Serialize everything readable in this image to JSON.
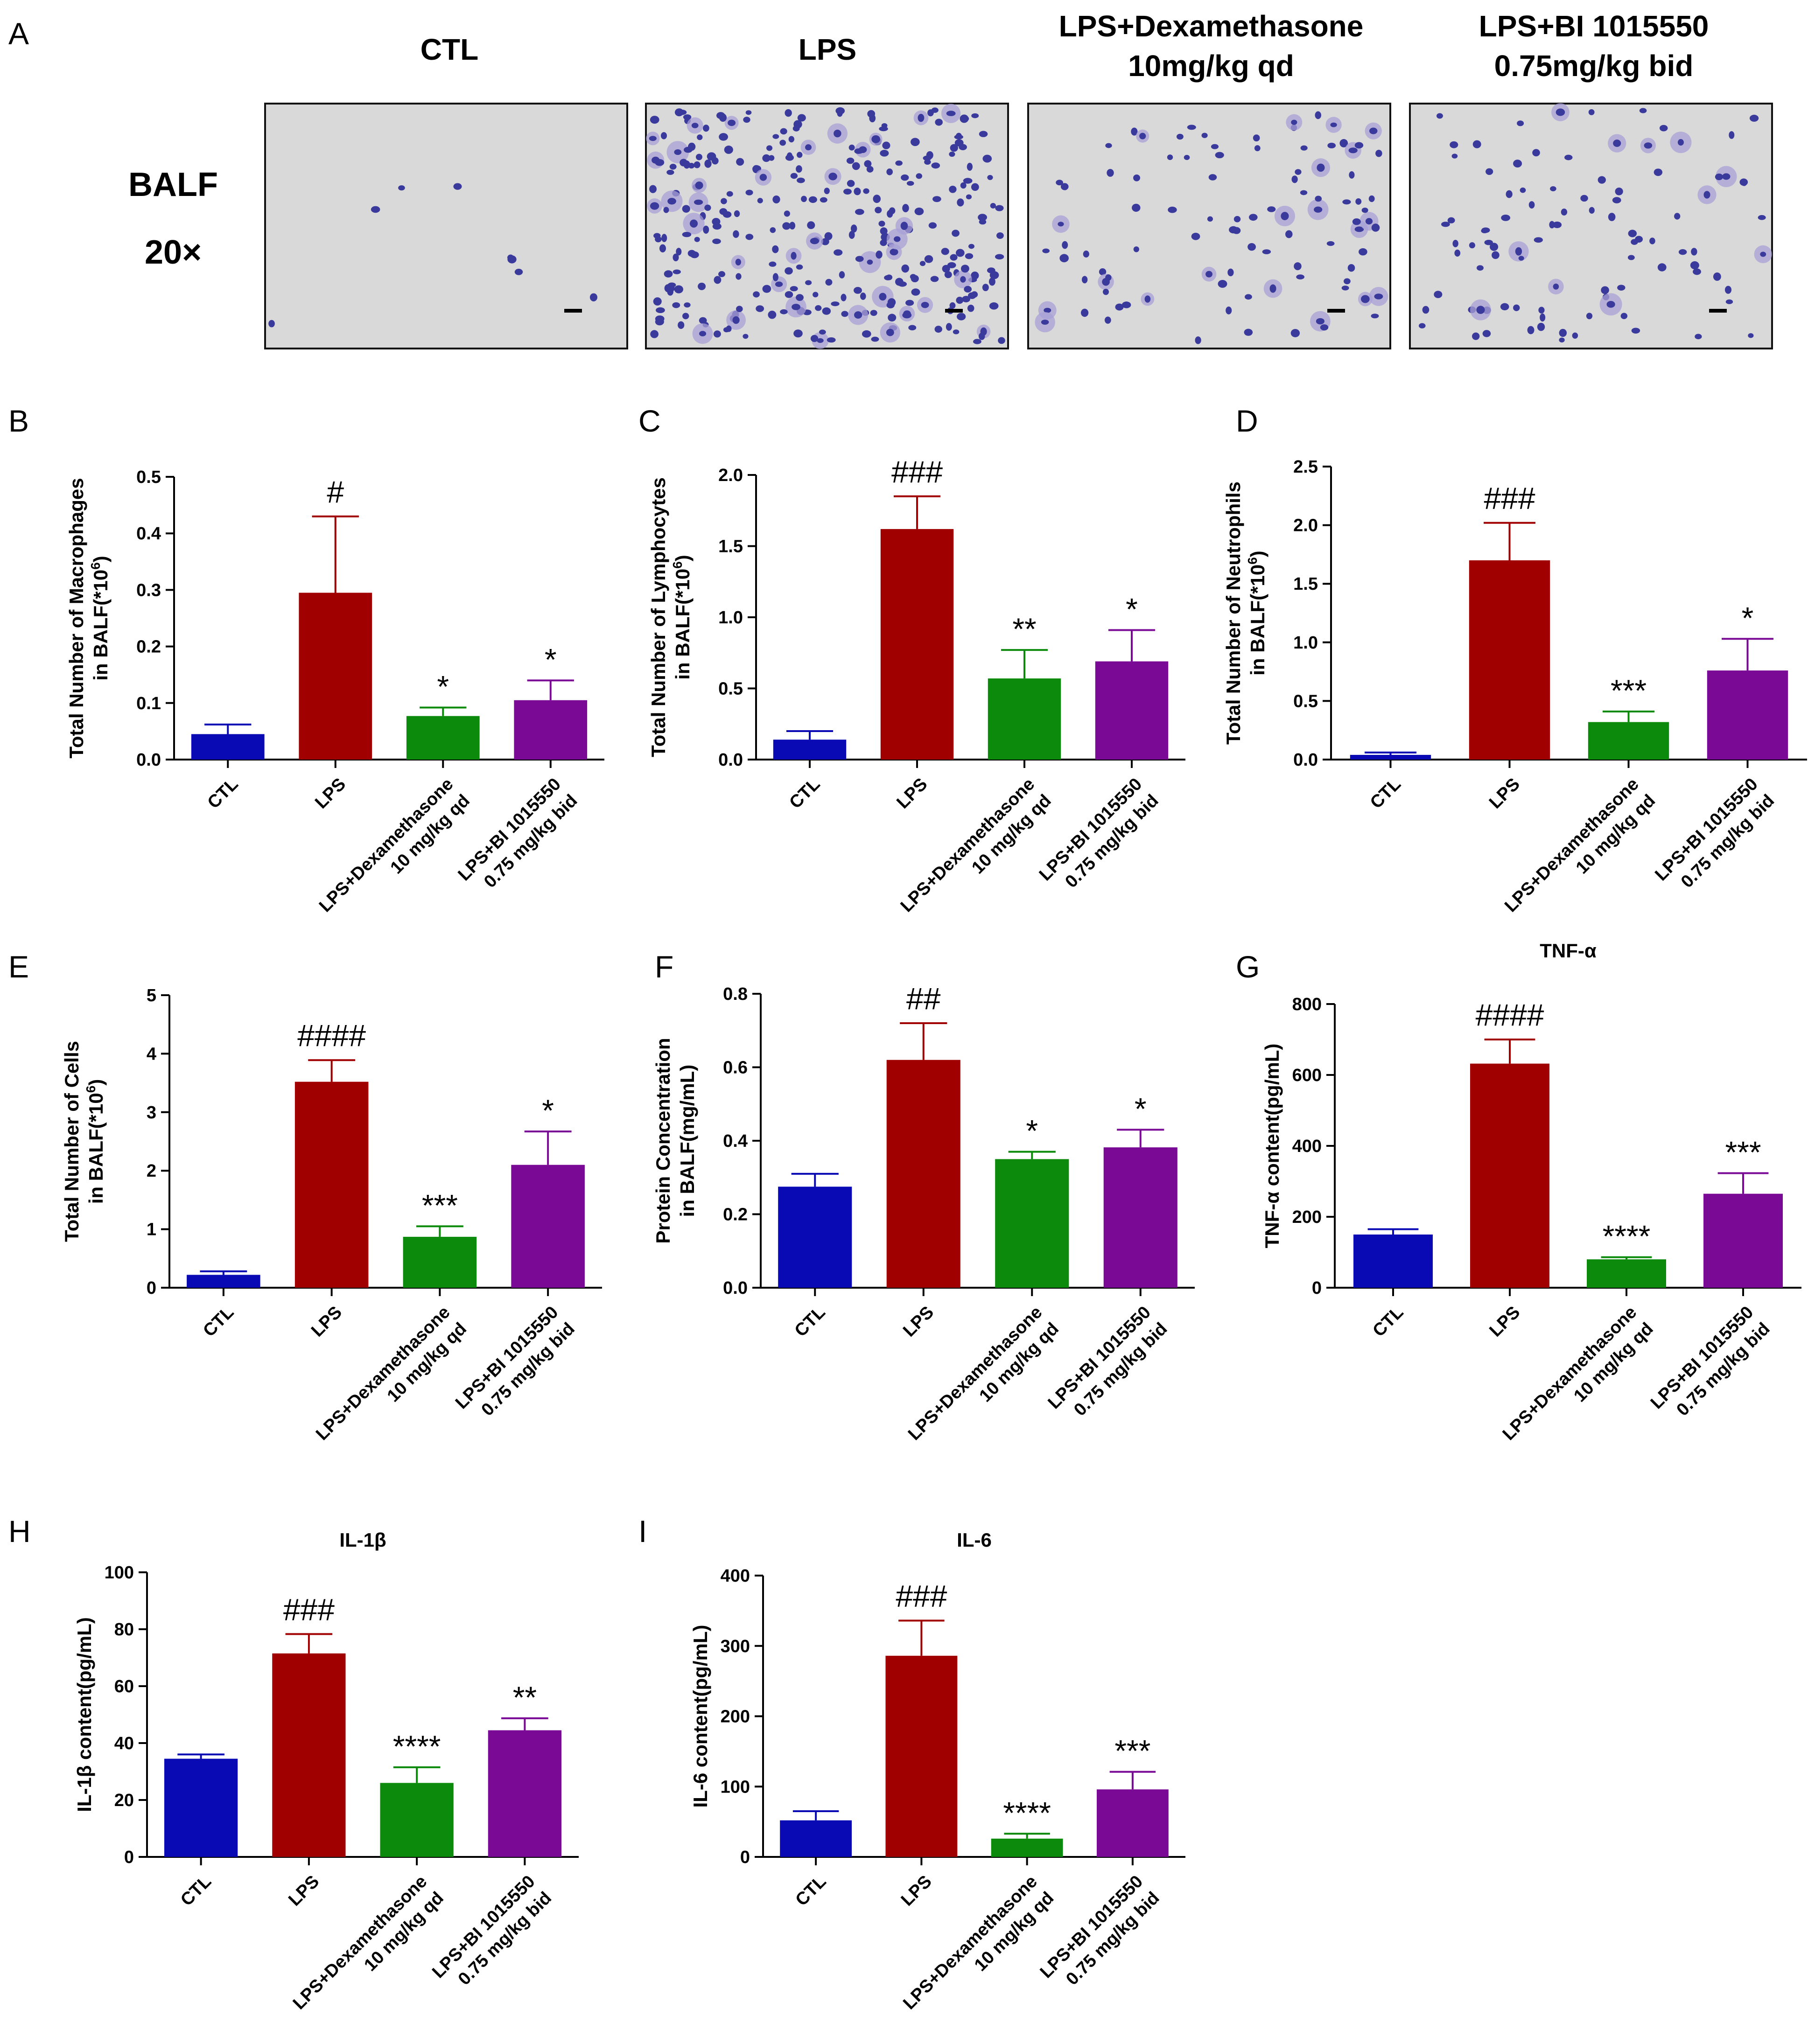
{
  "panel_a": {
    "letter": "A",
    "row_label": [
      "BALF",
      "20×"
    ],
    "columns": [
      {
        "title": [
          "CTL"
        ],
        "density": "sparse"
      },
      {
        "title": [
          "LPS"
        ],
        "density": "dense"
      },
      {
        "title": [
          "LPS+Dexamethasone",
          "10mg/kg qd"
        ],
        "density": "moderate"
      },
      {
        "title": [
          "LPS+BI 1015550",
          "0.75mg/kg bid"
        ],
        "density": "moderate"
      }
    ],
    "stain_colors": {
      "nucleus": "#3a3a9c",
      "cytoplasm": "#a8a0d6",
      "background": "#d9d9d9"
    }
  },
  "colors": {
    "CTL": "#0a0ab4",
    "LPS": "#a00000",
    "Dex": "#0c8a0c",
    "BI": "#7a0a96"
  },
  "category_labels": [
    [
      "CTL"
    ],
    [
      "LPS"
    ],
    [
      "LPS+Dexamethasone",
      "10 mg/kg qd"
    ],
    [
      "LPS+BI 1015550",
      "0.75 mg/kg bid"
    ]
  ],
  "chart_data": [
    {
      "panel": "B",
      "type": "bar",
      "title": "",
      "ylabel": [
        "Total Number of Macrophages",
        "in BALF(*10^6)"
      ],
      "ylim": [
        0,
        0.5
      ],
      "ticks": [
        "0.0",
        "0.1",
        "0.2",
        "0.3",
        "0.4",
        "0.5"
      ],
      "values": [
        0.045,
        0.295,
        0.077,
        0.105
      ],
      "errors": [
        0.017,
        0.135,
        0.015,
        0.035
      ],
      "annotations": [
        "",
        "#",
        "*",
        "*"
      ]
    },
    {
      "panel": "C",
      "type": "bar",
      "title": "",
      "ylabel": [
        "Total Number of Lymphocytes",
        "in BALF(*10^6)"
      ],
      "ylim": [
        0,
        2.0
      ],
      "ticks": [
        "0.0",
        "0.5",
        "1.0",
        "1.5",
        "2.0"
      ],
      "values": [
        0.14,
        1.62,
        0.57,
        0.69
      ],
      "errors": [
        0.06,
        0.23,
        0.2,
        0.22
      ],
      "annotations": [
        "",
        "###",
        "**",
        "*"
      ]
    },
    {
      "panel": "D",
      "type": "bar",
      "title": "",
      "ylabel": [
        "Total Number of Neutrophils",
        "in BALF(*10^6)"
      ],
      "ylim": [
        0,
        2.5
      ],
      "ticks": [
        "0.0",
        "0.5",
        "1.0",
        "1.5",
        "2.0",
        "2.5"
      ],
      "values": [
        0.04,
        1.7,
        0.32,
        0.76
      ],
      "errors": [
        0.02,
        0.32,
        0.09,
        0.27
      ],
      "annotations": [
        "",
        "###",
        "***",
        "*"
      ]
    },
    {
      "panel": "E",
      "type": "bar",
      "title": "",
      "ylabel": [
        "Total Number of Cells",
        "in BALF(*10^6)"
      ],
      "ylim": [
        0,
        5
      ],
      "ticks": [
        "0",
        "1",
        "2",
        "3",
        "4",
        "5"
      ],
      "values": [
        0.22,
        3.52,
        0.87,
        2.1
      ],
      "errors": [
        0.06,
        0.37,
        0.18,
        0.57
      ],
      "annotations": [
        "",
        "####",
        "***",
        "*"
      ]
    },
    {
      "panel": "F",
      "type": "bar",
      "title": "",
      "ylabel": [
        "Protein Concentration",
        "in BALF(mg/mL)"
      ],
      "ylim": [
        0,
        0.8
      ],
      "ticks": [
        "0.0",
        "0.2",
        "0.4",
        "0.6",
        "0.8"
      ],
      "values": [
        0.275,
        0.62,
        0.35,
        0.382
      ],
      "errors": [
        0.035,
        0.1,
        0.02,
        0.048
      ],
      "annotations": [
        "",
        "##",
        "*",
        "*"
      ]
    },
    {
      "panel": "G",
      "type": "bar",
      "title": "TNF-α",
      "ylabel": [
        "TNF-α content(pg/mL)"
      ],
      "ylim": [
        0,
        800
      ],
      "ticks": [
        "0",
        "200",
        "400",
        "600",
        "800"
      ],
      "values": [
        150,
        632,
        80,
        265
      ],
      "errors": [
        15,
        68,
        6,
        58
      ],
      "annotations": [
        "",
        "####",
        "****",
        "***"
      ]
    },
    {
      "panel": "H",
      "type": "bar",
      "title": "IL-1β",
      "ylabel": [
        "IL-1β content(pg/mL)"
      ],
      "ylim": [
        0,
        100
      ],
      "ticks": [
        "0",
        "20",
        "40",
        "60",
        "80",
        "100"
      ],
      "values": [
        34.5,
        71.5,
        26,
        44.5
      ],
      "errors": [
        1.5,
        6.8,
        5.5,
        4.2
      ],
      "annotations": [
        "",
        "###",
        "****",
        "**"
      ]
    },
    {
      "panel": "I",
      "type": "bar",
      "title": "IL-6",
      "ylabel": [
        "IL-6 content(pg/mL)"
      ],
      "ylim": [
        0,
        400
      ],
      "ticks": [
        "0",
        "100",
        "200",
        "300",
        "400"
      ],
      "values": [
        52,
        286,
        26,
        96
      ],
      "errors": [
        13,
        50,
        7,
        25
      ],
      "annotations": [
        "",
        "###",
        "****",
        "***"
      ]
    }
  ]
}
